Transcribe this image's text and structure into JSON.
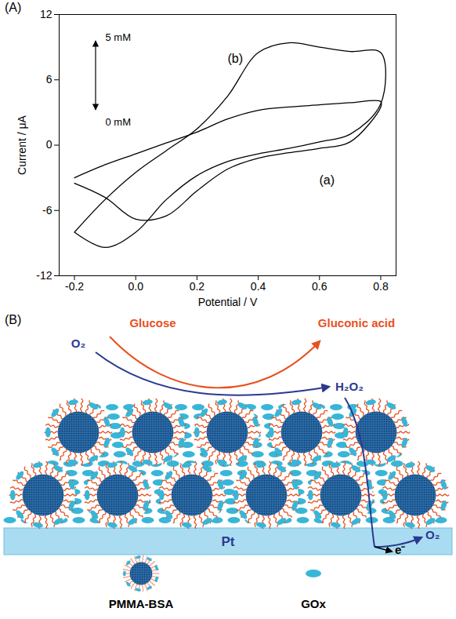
{
  "chart_data": {
    "type": "line",
    "panel": "(A)",
    "x_label": "Potential / V",
    "y_label": "Current / μA",
    "x": [
      -0.2,
      -0.1,
      0.0,
      0.1,
      0.2,
      0.3,
      0.4,
      0.5,
      0.6,
      0.7,
      0.8,
      0.8,
      0.7,
      0.6,
      0.5,
      0.4,
      0.3,
      0.2,
      0.1,
      0.0,
      -0.1,
      -0.2
    ],
    "series": [
      {
        "name": "(a)",
        "color": "#000000",
        "values": [
          -3.0,
          -1.8,
          -0.8,
          0.2,
          1.2,
          2.4,
          3.2,
          3.5,
          3.7,
          3.9,
          4.0,
          3.5,
          0.3,
          -0.3,
          -0.7,
          -1.2,
          -2.2,
          -4.2,
          -6.5,
          -6.8,
          -4.8,
          -3.5
        ]
      },
      {
        "name": "(b)",
        "color": "#000000",
        "values": [
          -8.0,
          -5.0,
          -2.5,
          -0.5,
          1.5,
          4.5,
          8.5,
          9.4,
          9.0,
          8.6,
          8.5,
          3.8,
          1.0,
          0.3,
          -0.3,
          -0.8,
          -1.5,
          -2.8,
          -5.0,
          -8.0,
          -9.4,
          -8.0
        ]
      }
    ],
    "annotations": [
      "5 mM",
      "0 mM"
    ],
    "xlim": [
      -0.25,
      0.85
    ],
    "ylim": [
      -12,
      12
    ],
    "xticks": [
      -0.2,
      {
        "value": 0,
        "label": "0.0"
      },
      0.2,
      0.4,
      0.6,
      0.8
    ],
    "yticks": [
      -12,
      -6,
      0,
      6,
      12
    ],
    "grid": false
  },
  "diagram": {
    "panel": "(B)",
    "substrate": "Glucose",
    "product": "Gluconic acid",
    "oxygen_in": "O₂",
    "peroxide": "H₂O₂",
    "electron": "e⁻",
    "oxygen_out": "O₂",
    "electrode": "Pt",
    "legend_items": [
      "PMMA-BSA",
      "GOx"
    ]
  }
}
